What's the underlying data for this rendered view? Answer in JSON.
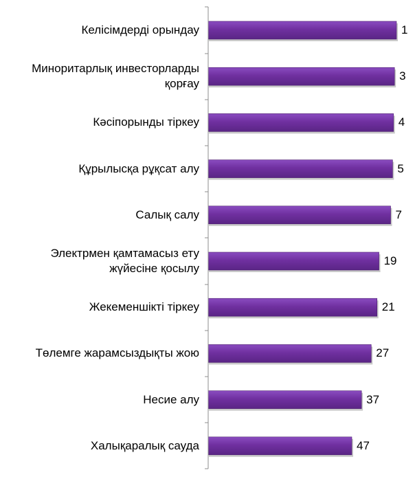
{
  "chart_data": {
    "type": "bar",
    "orientation": "horizontal",
    "categories": [
      "Келісімдерді орындау",
      "Миноритарлық инвесторларды қорғау",
      "Кәсіпорынды тіркеу",
      "Құрылысқа рұқсат алу",
      "Салық салу",
      "Электрмен қамтамасыз ету жүйесіне қосылу",
      "Жекеменшікті тіркеу",
      "Төлемге жарамсыздықты жою",
      "Несие алу",
      "Халықаралық сауда"
    ],
    "category_lines": [
      [
        "Келісімдерді орындау"
      ],
      [
        "Миноритарлық инвесторларды",
        "қорғау"
      ],
      [
        "Кәсіпорынды тіркеу"
      ],
      [
        "Құрылысқа рұқсат алу"
      ],
      [
        "Салық салу"
      ],
      [
        "Электрмен қамтамасыз ету",
        "жүйесіне қосылу"
      ],
      [
        "Жекеменшікті тіркеу"
      ],
      [
        "Төлемге жарамсыздықты жою"
      ],
      [
        "Несие алу"
      ],
      [
        "Халықаралық сауда"
      ]
    ],
    "values": [
      1,
      3,
      4,
      5,
      7,
      19,
      21,
      27,
      37,
      47
    ],
    "title": "",
    "xlabel": "",
    "ylabel": "",
    "scale": "reversed rank (lower value = longer bar)",
    "grid": false,
    "legend": "none",
    "bar_color": "#7030a0"
  }
}
